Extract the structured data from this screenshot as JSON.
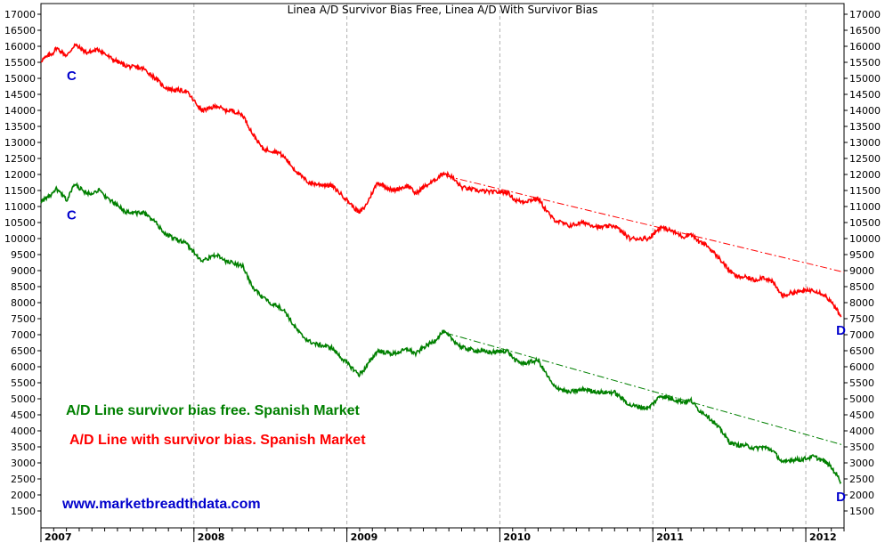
{
  "chart_data": {
    "type": "line",
    "title": "Linea A/D Survivor Bias Free, Linea A/D With Survivor Bias",
    "ylim": [
      1000,
      17250
    ],
    "xlim": [
      2007.0,
      2012.25
    ],
    "y_ticks": [
      1500,
      2000,
      2500,
      3000,
      3500,
      4000,
      4500,
      5000,
      5500,
      6000,
      6500,
      7000,
      7500,
      8000,
      8500,
      9000,
      9500,
      10000,
      10500,
      11000,
      11500,
      12000,
      12500,
      13000,
      13500,
      14000,
      14500,
      15000,
      15500,
      16000,
      16500,
      17000
    ],
    "y_tick_labels": [
      "1500",
      "2000",
      "2500",
      "3000",
      "3500",
      "4000",
      "4500",
      "5000",
      "5500",
      "6000",
      "6500",
      "7000",
      "7500",
      "8000",
      "8500",
      "9000",
      "9500",
      "10000",
      "10500",
      "11000",
      "11500",
      "12000",
      "12500",
      "13000",
      "13500",
      "14000",
      "14500",
      "15000",
      "15500",
      "16000",
      "16500",
      "17000"
    ],
    "x_ticks": [
      {
        "value": 2007.0,
        "label": "2007"
      },
      {
        "value": 2008.0,
        "label": "2008"
      },
      {
        "value": 2009.0,
        "label": "2009"
      },
      {
        "value": 2010.0,
        "label": "2010"
      },
      {
        "value": 2011.0,
        "label": "2011"
      },
      {
        "value": 2012.0,
        "label": "2012"
      }
    ],
    "grid": "vertical dashed at year boundaries",
    "series": [
      {
        "name": "A/D Line with survivor bias. Spanish Market",
        "color": "#ff0000",
        "x": [
          2007.0,
          2007.08,
          2007.1,
          2007.17,
          2007.22,
          2007.3,
          2007.38,
          2007.45,
          2007.55,
          2007.6,
          2007.67,
          2007.75,
          2007.8,
          2007.85,
          2007.95,
          2008.05,
          2008.1,
          2008.15,
          2008.2,
          2008.25,
          2008.32,
          2008.38,
          2008.45,
          2008.5,
          2008.55,
          2008.6,
          2008.65,
          2008.7,
          2008.75,
          2008.8,
          2008.9,
          2008.97,
          2009.08,
          2009.12,
          2009.2,
          2009.3,
          2009.4,
          2009.45,
          2009.5,
          2009.57,
          2009.63,
          2009.68,
          2009.75,
          2009.85,
          2009.95,
          2010.05,
          2010.1,
          2010.15,
          2010.25,
          2010.3,
          2010.35,
          2010.45,
          2010.55,
          2010.65,
          2010.75,
          2010.85,
          2010.97,
          2011.05,
          2011.12,
          2011.2,
          2011.25,
          2011.3,
          2011.35,
          2011.4,
          2011.45,
          2011.5,
          2011.55,
          2011.6,
          2011.67,
          2011.72,
          2011.78,
          2011.85,
          2011.9,
          2011.97,
          2012.05,
          2012.12,
          2012.15,
          2012.2,
          2012.23
        ],
        "values": [
          15550,
          15800,
          15950,
          15700,
          16050,
          15800,
          15900,
          15650,
          15400,
          15350,
          15300,
          15000,
          14750,
          14650,
          14600,
          14000,
          14050,
          14150,
          14000,
          14000,
          13850,
          13300,
          12800,
          12750,
          12700,
          12500,
          12200,
          11950,
          11750,
          11700,
          11650,
          11350,
          10800,
          11000,
          11750,
          11500,
          11650,
          11400,
          11600,
          11800,
          12050,
          11950,
          11600,
          11500,
          11450,
          11450,
          11200,
          11150,
          11250,
          10900,
          10600,
          10400,
          10500,
          10350,
          10400,
          10000,
          10000,
          10350,
          10250,
          10050,
          10150,
          9900,
          9800,
          9550,
          9300,
          9000,
          8800,
          8800,
          8700,
          8800,
          8650,
          8200,
          8300,
          8350,
          8400,
          8250,
          8100,
          7800,
          7550
        ]
      },
      {
        "name": "A/D Line survivor bias free. Spanish Market",
        "color": "#008000",
        "x": [
          2007.0,
          2007.08,
          2007.1,
          2007.17,
          2007.22,
          2007.3,
          2007.38,
          2007.45,
          2007.55,
          2007.6,
          2007.67,
          2007.75,
          2007.8,
          2007.85,
          2007.95,
          2008.05,
          2008.1,
          2008.15,
          2008.2,
          2008.25,
          2008.32,
          2008.38,
          2008.45,
          2008.5,
          2008.55,
          2008.6,
          2008.65,
          2008.7,
          2008.75,
          2008.8,
          2008.9,
          2008.97,
          2009.08,
          2009.12,
          2009.2,
          2009.3,
          2009.4,
          2009.45,
          2009.5,
          2009.57,
          2009.63,
          2009.68,
          2009.75,
          2009.85,
          2009.95,
          2010.05,
          2010.1,
          2010.15,
          2010.25,
          2010.3,
          2010.35,
          2010.45,
          2010.55,
          2010.65,
          2010.75,
          2010.85,
          2010.97,
          2011.05,
          2011.12,
          2011.2,
          2011.25,
          2011.3,
          2011.35,
          2011.4,
          2011.45,
          2011.5,
          2011.55,
          2011.6,
          2011.67,
          2011.72,
          2011.78,
          2011.85,
          2011.9,
          2011.97,
          2012.05,
          2012.12,
          2012.15,
          2012.2,
          2012.23
        ],
        "values": [
          11150,
          11400,
          11550,
          11200,
          11700,
          11400,
          11500,
          11200,
          10850,
          10800,
          10800,
          10500,
          10200,
          10050,
          9850,
          9300,
          9400,
          9500,
          9300,
          9250,
          9150,
          8500,
          8150,
          8000,
          7900,
          7700,
          7300,
          7000,
          6800,
          6700,
          6600,
          6250,
          5750,
          5950,
          6500,
          6400,
          6550,
          6400,
          6600,
          6800,
          7100,
          6900,
          6600,
          6500,
          6450,
          6500,
          6200,
          6100,
          6200,
          5800,
          5400,
          5200,
          5300,
          5200,
          5200,
          4800,
          4700,
          5100,
          5000,
          4900,
          4950,
          4650,
          4500,
          4250,
          4000,
          3650,
          3550,
          3550,
          3450,
          3500,
          3400,
          3000,
          3100,
          3100,
          3200,
          3050,
          2950,
          2650,
          2400
        ]
      }
    ],
    "trendlines": [
      {
        "name": "red-trendline",
        "color": "#ff0000",
        "x": [
          2009.65,
          2012.25
        ],
        "y": [
          11950,
          8950
        ]
      },
      {
        "name": "green-trendline",
        "color": "#008000",
        "x": [
          2009.65,
          2012.25
        ],
        "y": [
          7050,
          3550
        ]
      }
    ],
    "legend": [
      "A/D Line survivor bias free. Spanish Market",
      "A/D Line with survivor bias. Spanish Market"
    ],
    "annotations": [
      {
        "text": "C",
        "x": 2007.2,
        "y": 14950
      },
      {
        "text": "C",
        "x": 2007.2,
        "y": 10600
      },
      {
        "text": "D",
        "x": 2012.23,
        "y": 7000
      },
      {
        "text": "D",
        "x": 2012.23,
        "y": 1800
      }
    ],
    "watermark": "www.marketbreadthdata.com"
  }
}
